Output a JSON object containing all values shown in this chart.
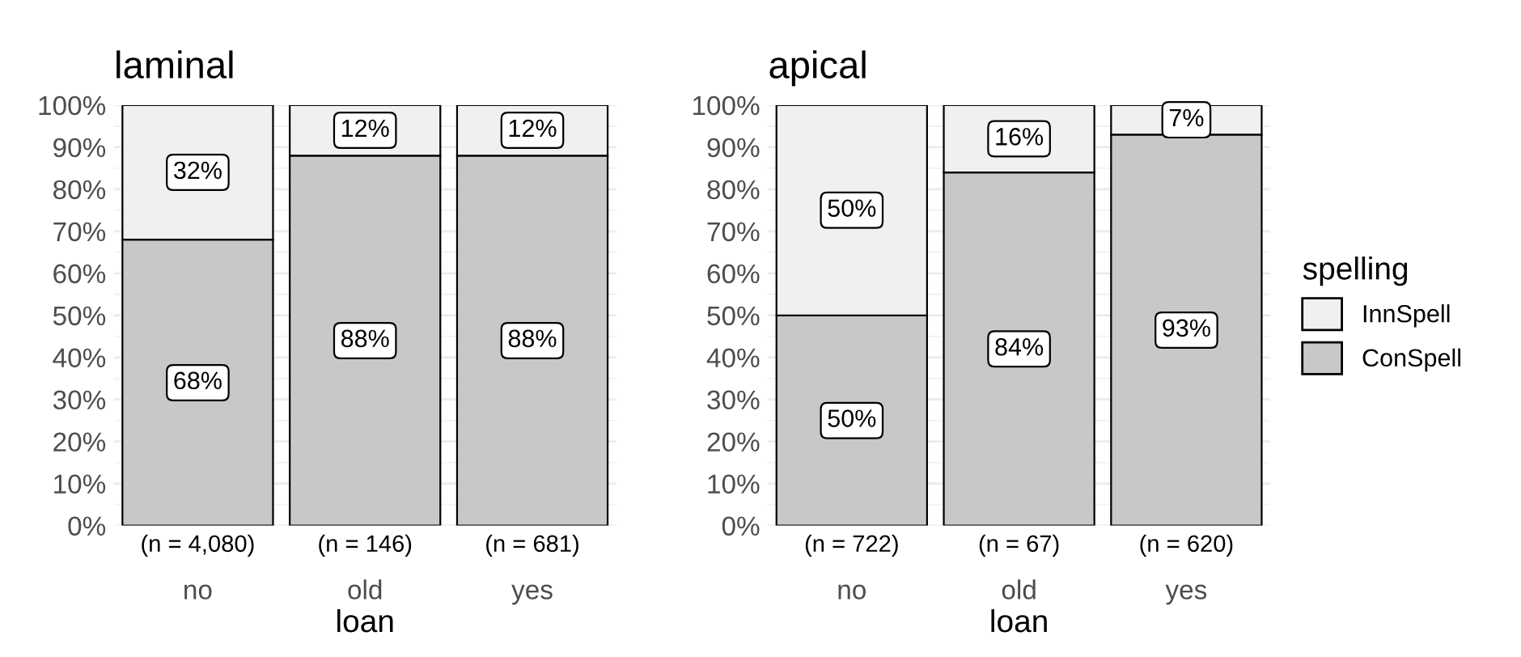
{
  "chart_data": [
    {
      "type": "bar",
      "title": "laminal",
      "xlabel": "loan",
      "stacked": true,
      "categories": [
        "no",
        "old",
        "yes"
      ],
      "series": [
        {
          "color": "#c8c8c8",
          "values": [
            68,
            88,
            88
          ],
          "value_labels": [
            "68%",
            "88%",
            "88%"
          ]
        },
        {
          "color": "#f0f0f0",
          "values": [
            32,
            12,
            12
          ],
          "value_labels": [
            "32%",
            "12%",
            "12%"
          ]
        }
      ],
      "ylim": [
        0,
        100
      ],
      "yticks": [
        {
          "value": 0,
          "label": "0%"
        },
        {
          "value": 10,
          "label": "10%"
        },
        {
          "value": 20,
          "label": "20%"
        },
        {
          "value": 30,
          "label": "30%"
        },
        {
          "value": 40,
          "label": "40%"
        },
        {
          "value": 50,
          "label": "50%"
        },
        {
          "value": 60,
          "label": "60%"
        },
        {
          "value": 70,
          "label": "70%"
        },
        {
          "value": 80,
          "label": "80%"
        },
        {
          "value": 90,
          "label": "90%"
        },
        {
          "value": 100,
          "label": "100%"
        }
      ],
      "grid": "y",
      "legend": false,
      "annotations": [
        {
          "text": "(n = 4,080)",
          "x": "no",
          "y": 0
        },
        {
          "text": "(n = 146)",
          "x": "old",
          "y": 0
        },
        {
          "text": "(n = 681)",
          "x": "yes",
          "y": 0
        }
      ]
    },
    {
      "type": "bar",
      "title": "apical",
      "xlabel": "loan",
      "stacked": true,
      "categories": [
        "no",
        "old",
        "yes"
      ],
      "legend_title": "spelling",
      "series": [
        {
          "name": "ConSpell",
          "color": "#c8c8c8",
          "values": [
            50,
            84,
            93
          ],
          "value_labels": [
            "50%",
            "84%",
            "93%"
          ]
        },
        {
          "name": "InnSpell",
          "color": "#f0f0f0",
          "values": [
            50,
            16,
            7
          ],
          "value_labels": [
            "50%",
            "16%",
            "7%"
          ]
        }
      ],
      "ylim": [
        0,
        100
      ],
      "yticks": [
        {
          "value": 0,
          "label": "0%"
        },
        {
          "value": 10,
          "label": "10%"
        },
        {
          "value": 20,
          "label": "20%"
        },
        {
          "value": 30,
          "label": "30%"
        },
        {
          "value": 40,
          "label": "40%"
        },
        {
          "value": 50,
          "label": "50%"
        },
        {
          "value": 60,
          "label": "60%"
        },
        {
          "value": 70,
          "label": "70%"
        },
        {
          "value": 80,
          "label": "80%"
        },
        {
          "value": 90,
          "label": "90%"
        },
        {
          "value": 100,
          "label": "100%"
        }
      ],
      "grid": "y",
      "legend": "right",
      "annotations": [
        {
          "text": "(n = 722)",
          "x": "no",
          "y": 0
        },
        {
          "text": "(n = 67)",
          "x": "old",
          "y": 0
        },
        {
          "text": "(n = 620)",
          "x": "yes",
          "y": 0
        }
      ]
    }
  ]
}
